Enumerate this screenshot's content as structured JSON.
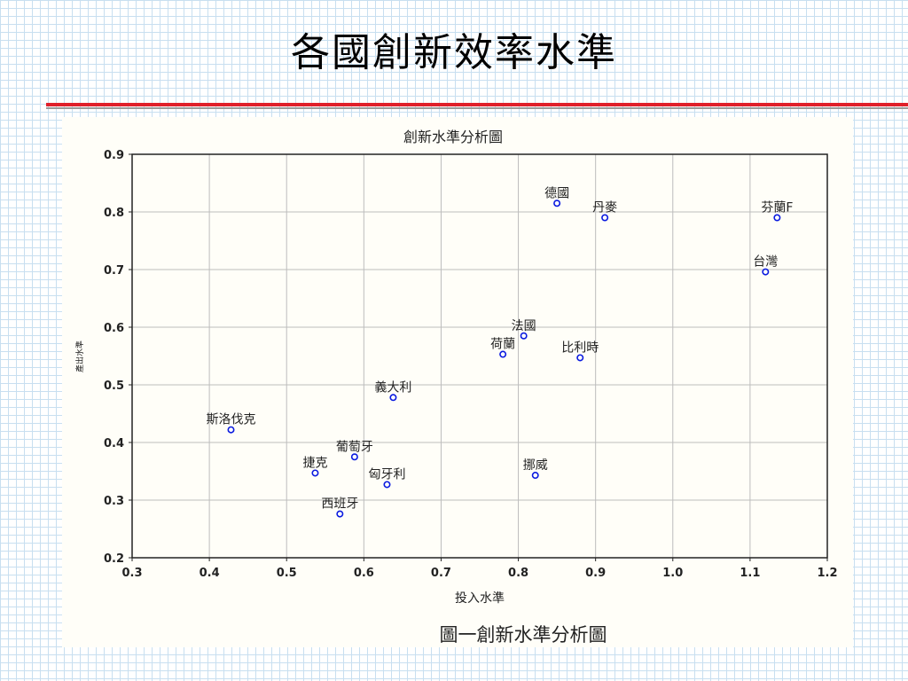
{
  "slide": {
    "title": "各國創新效率水準",
    "caption": "圖一創新水準分析圖"
  },
  "colors": {
    "title_rule": "#e0202a",
    "marker": "#0a1adf",
    "grid": "#bdbdbd",
    "background_grid": "#c8dff0"
  },
  "chart_data": {
    "type": "scatter",
    "title": "創新水準分析圖",
    "xlabel": "投入水準",
    "ylabel": "產出水準",
    "xlim": [
      0.3,
      1.2
    ],
    "ylim": [
      0.2,
      0.9
    ],
    "xticks": [
      "0.3",
      "0.4",
      "0.5",
      "0.6",
      "0.7",
      "0.8",
      "0.9",
      "1.0",
      "1.1",
      "1.2"
    ],
    "yticks": [
      "0.2",
      "0.3",
      "0.4",
      "0.5",
      "0.6",
      "0.7",
      "0.8",
      "0.9"
    ],
    "grid": true,
    "marker": "open-circle",
    "points": [
      {
        "label": "德國",
        "x": 0.85,
        "y": 0.815
      },
      {
        "label": "丹麥",
        "x": 0.912,
        "y": 0.79
      },
      {
        "label": "芬蘭F",
        "x": 1.135,
        "y": 0.79
      },
      {
        "label": "台灣",
        "x": 1.12,
        "y": 0.696
      },
      {
        "label": "法國",
        "x": 0.807,
        "y": 0.585
      },
      {
        "label": "荷蘭",
        "x": 0.78,
        "y": 0.553
      },
      {
        "label": "比利時",
        "x": 0.88,
        "y": 0.547
      },
      {
        "label": "義大利",
        "x": 0.638,
        "y": 0.478
      },
      {
        "label": "斯洛伐克",
        "x": 0.428,
        "y": 0.422
      },
      {
        "label": "葡萄牙",
        "x": 0.588,
        "y": 0.375
      },
      {
        "label": "捷克",
        "x": 0.537,
        "y": 0.347
      },
      {
        "label": "挪威",
        "x": 0.822,
        "y": 0.343
      },
      {
        "label": "匈牙利",
        "x": 0.63,
        "y": 0.327
      },
      {
        "label": "西班牙",
        "x": 0.569,
        "y": 0.276
      }
    ]
  }
}
